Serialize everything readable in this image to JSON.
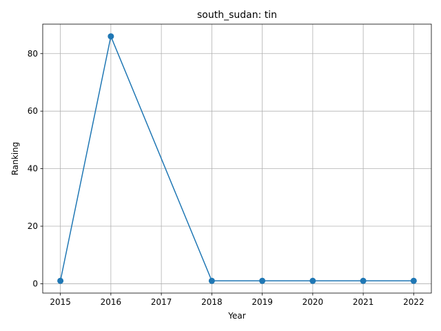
{
  "chart_data": {
    "type": "line",
    "title": "south_sudan: tin",
    "xlabel": "Year",
    "ylabel": "Ranking",
    "x": [
      2015,
      2016,
      2018,
      2019,
      2020,
      2021,
      2022
    ],
    "x_ticks": [
      "2015",
      "2016",
      "2017",
      "2018",
      "2019",
      "2020",
      "2021",
      "2022"
    ],
    "y_ticks": [
      "0",
      "20",
      "40",
      "60",
      "80"
    ],
    "series": [
      {
        "values": [
          1,
          86,
          1,
          1,
          1,
          1,
          1
        ],
        "color": "#1f77b4"
      }
    ],
    "xlim": [
      2014.65,
      2022.35
    ],
    "ylim": [
      -3.25,
      90.25
    ],
    "grid": true,
    "marker": "circle"
  }
}
